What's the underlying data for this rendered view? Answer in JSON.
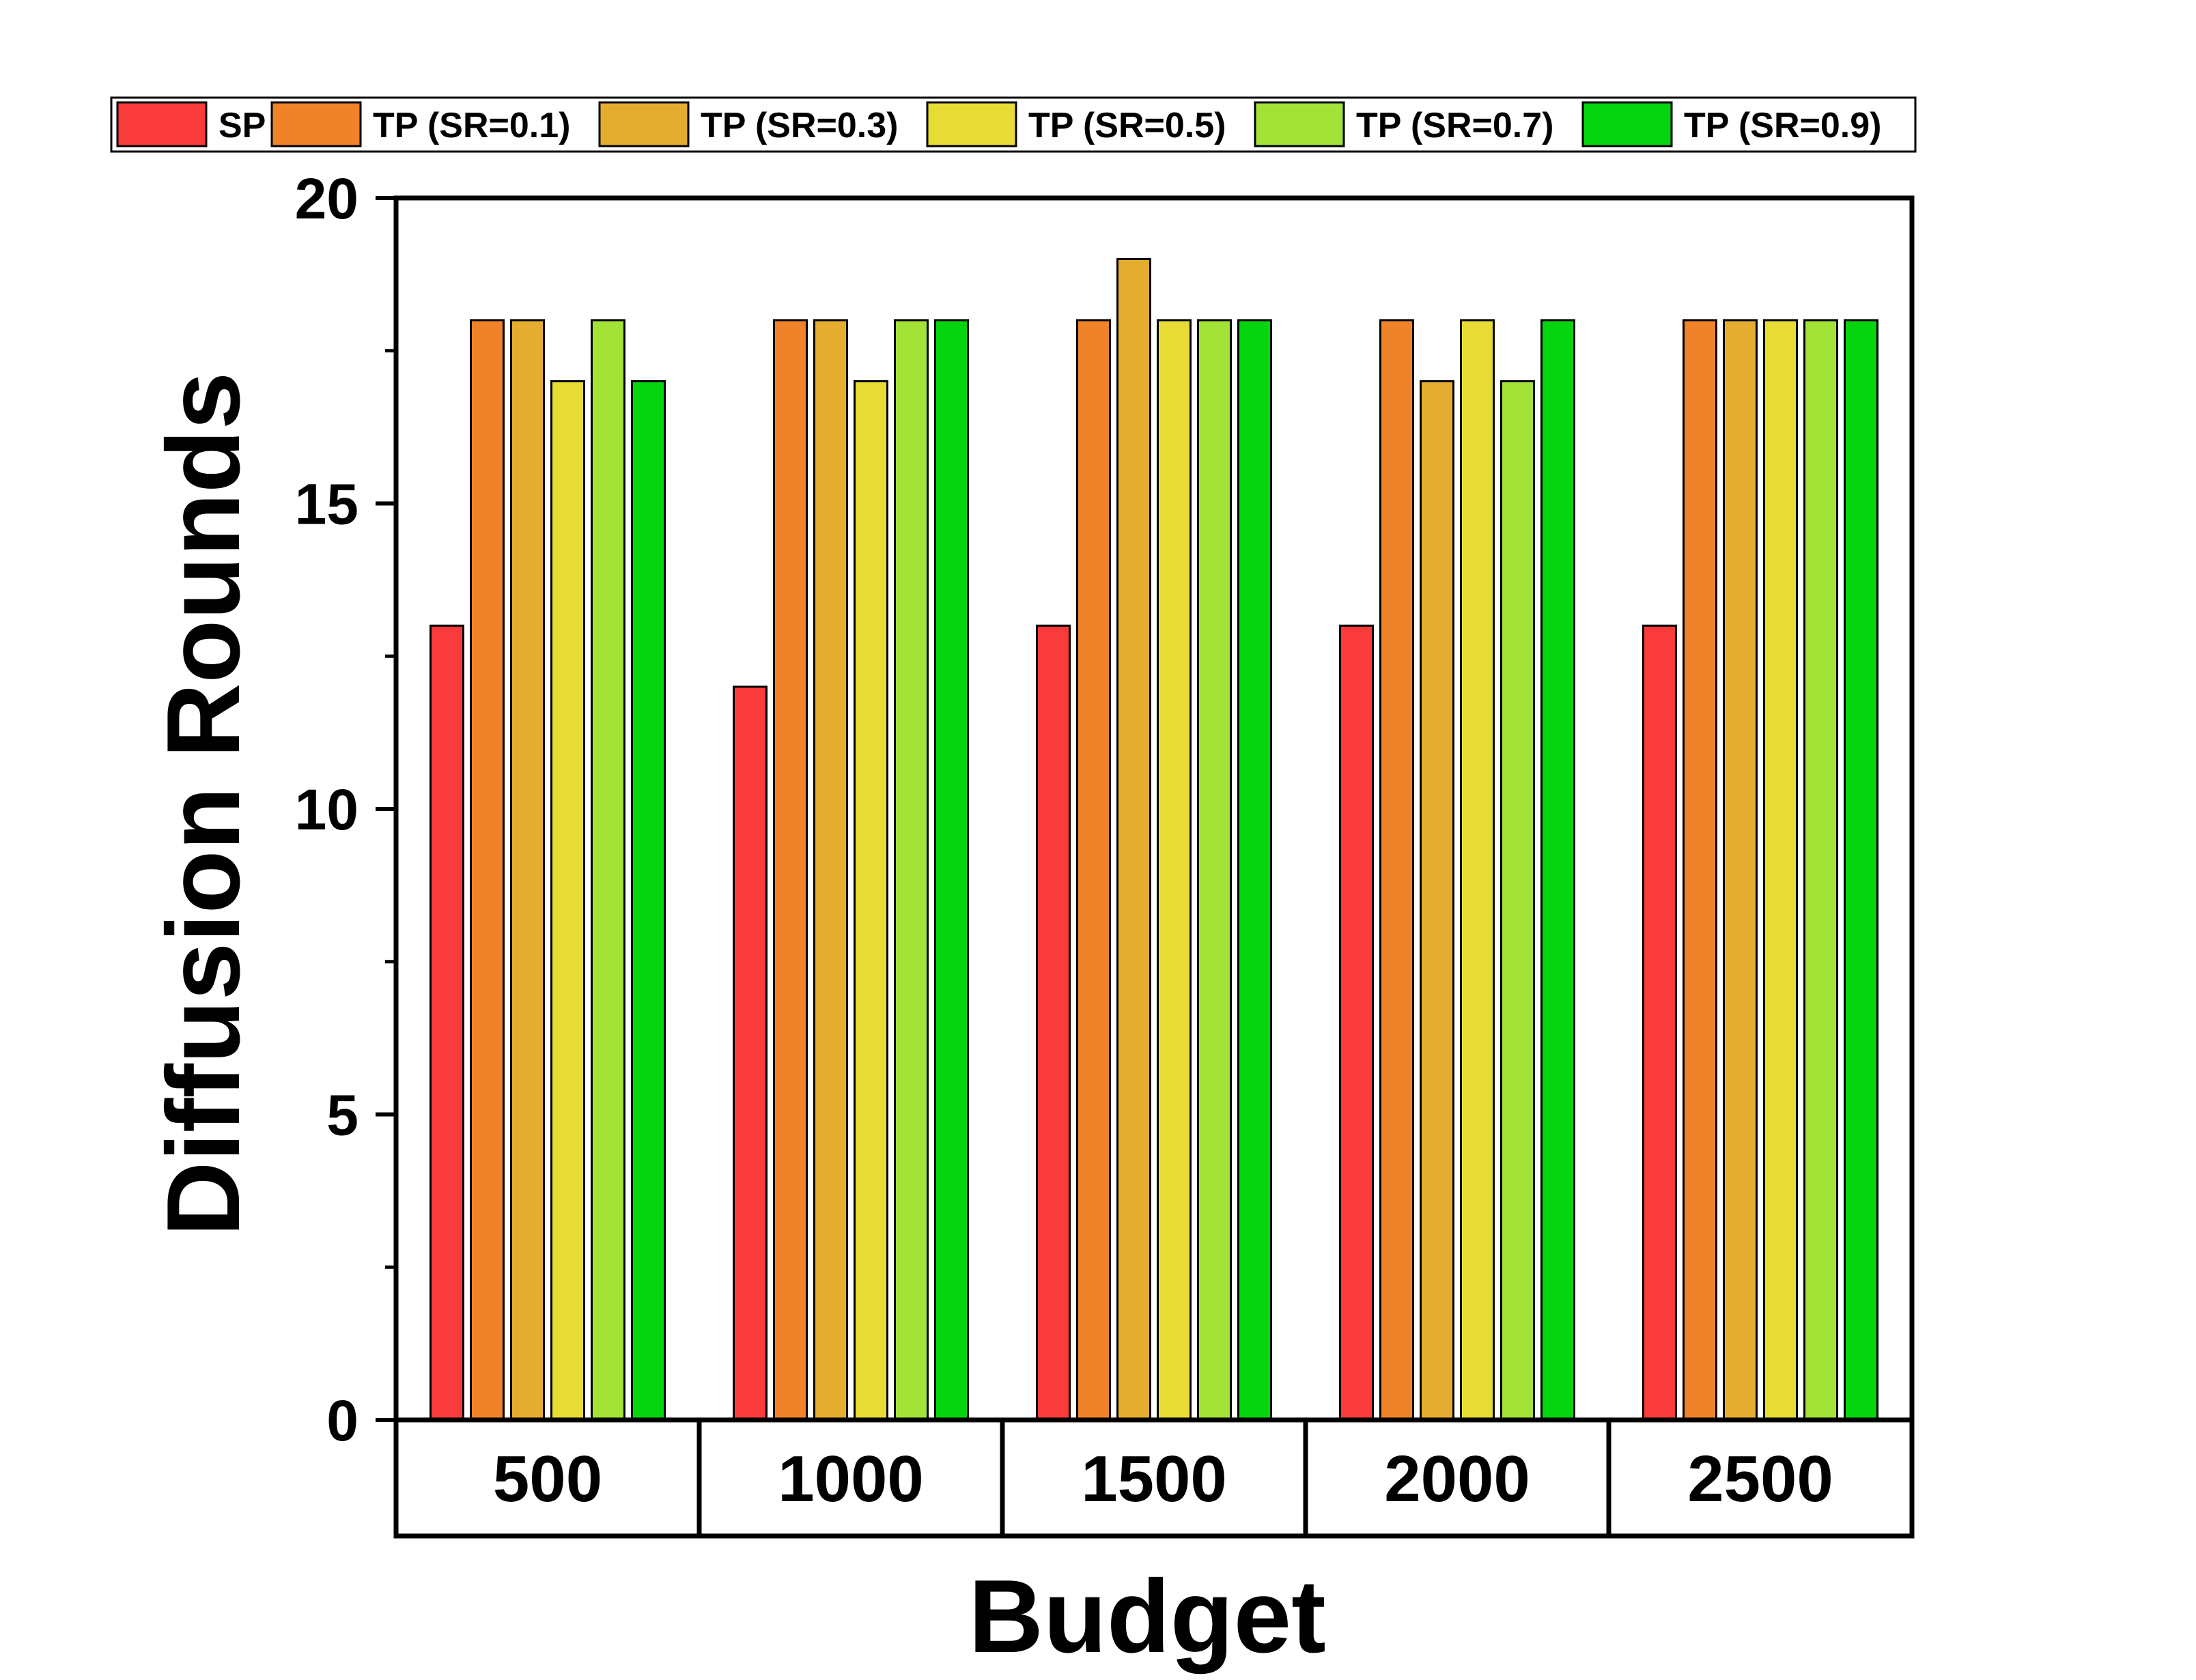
{
  "chart_data": {
    "type": "bar",
    "title": "",
    "xlabel": "Budget",
    "ylabel": "Diffusion Rounds",
    "categories": [
      "500",
      "1000",
      "1500",
      "2000",
      "2500"
    ],
    "ylim": [
      0,
      20
    ],
    "yticks": [
      0,
      5,
      10,
      15,
      20
    ],
    "legend_position": "top",
    "series": [
      {
        "name": "SP",
        "color": "#f93b3b",
        "values": [
          13,
          12,
          13,
          13,
          13
        ]
      },
      {
        "name": "TP (SR=0.1)",
        "color": "#f0832a",
        "values": [
          18,
          18,
          18,
          18,
          18
        ]
      },
      {
        "name": "TP (SR=0.3)",
        "color": "#e5ad30",
        "values": [
          18,
          18,
          19,
          17,
          18
        ]
      },
      {
        "name": "TP (SR=0.5)",
        "color": "#e7dc33",
        "values": [
          17,
          17,
          18,
          18,
          18
        ]
      },
      {
        "name": "TP (SR=0.7)",
        "color": "#a3e236",
        "values": [
          18,
          18,
          18,
          17,
          18
        ]
      },
      {
        "name": "TP (SR=0.9)",
        "color": "#05d50e",
        "values": [
          17,
          18,
          18,
          18,
          18
        ]
      }
    ]
  }
}
